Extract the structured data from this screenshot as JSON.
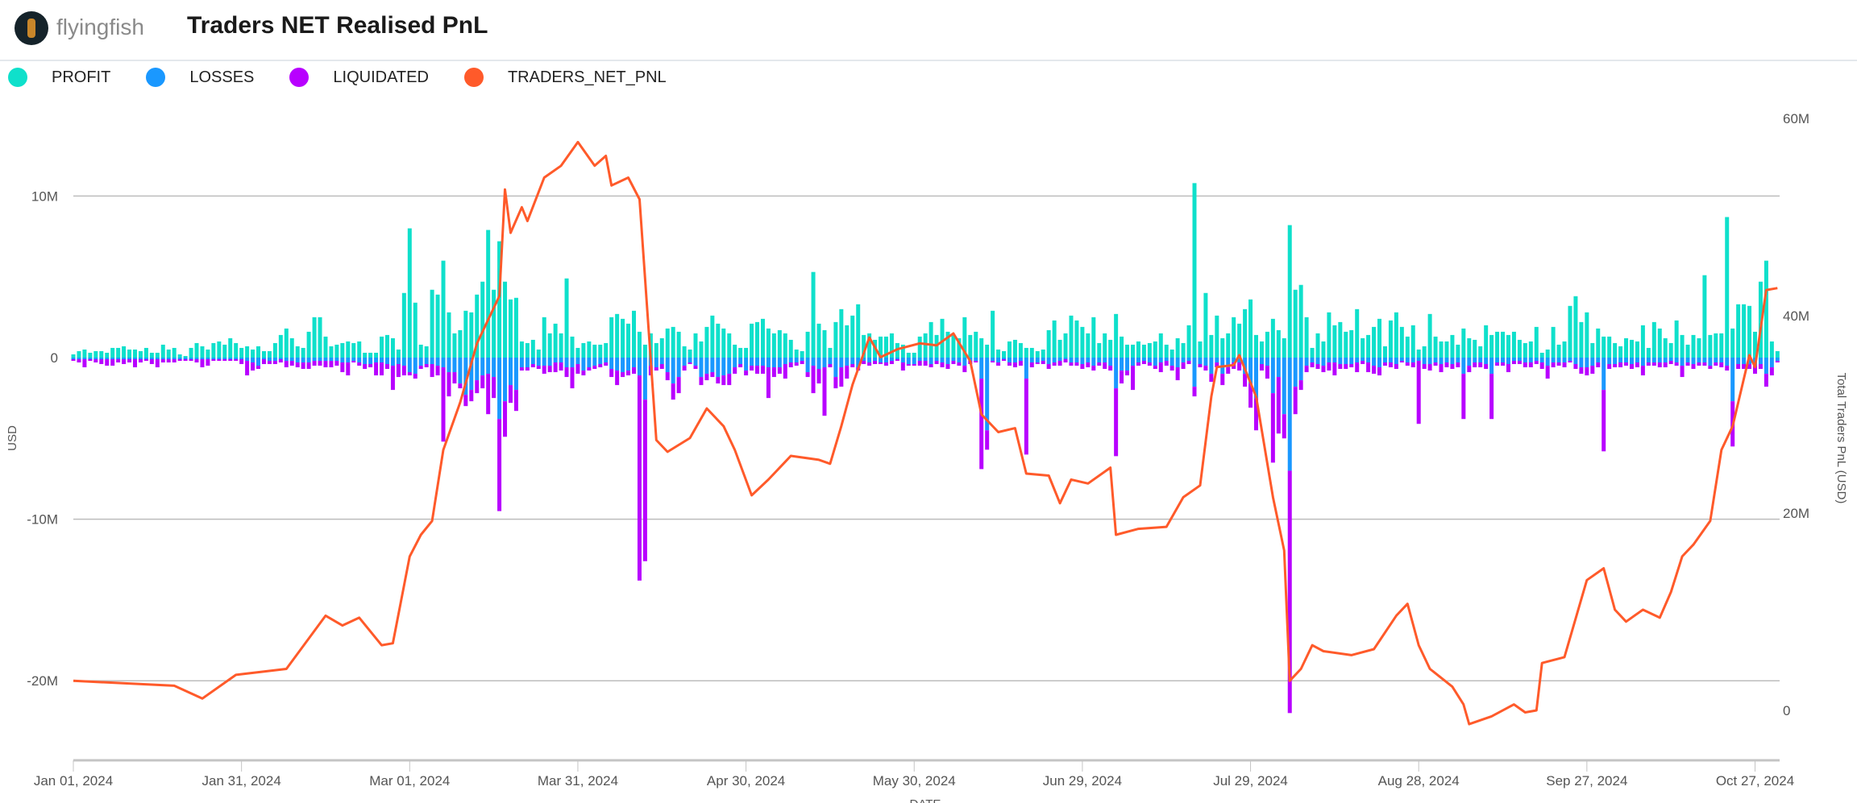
{
  "header": {
    "brand": "flyingfish",
    "title": "Traders NET Realised PnL"
  },
  "legend": [
    {
      "label": "PROFIT",
      "color": "#0fe0cb"
    },
    {
      "label": "LOSSES",
      "color": "#1a98ff"
    },
    {
      "label": "LIQUIDATED",
      "color": "#b800ff"
    },
    {
      "label": "TRADERS_NET_PNL",
      "color": "#ff5a2a"
    }
  ],
  "chart_data": {
    "type": "bar+line",
    "start_date": "2024-01-01",
    "xlabel": "DATE",
    "ylabel": "USD",
    "y2label": "Total Traders PnL (USD)",
    "x_ticks": [
      "Jan 01, 2024",
      "Jan 31, 2024",
      "Mar 01, 2024",
      "Mar 31, 2024",
      "Apr 30, 2024",
      "May 30, 2024",
      "Jun 29, 2024",
      "Jul 29, 2024",
      "Aug 28, 2024",
      "Sep 27, 2024",
      "Oct 27, 2024"
    ],
    "y_ticks": [
      {
        "v": 10,
        "label": "10M"
      },
      {
        "v": 0,
        "label": "0"
      },
      {
        "v": -10,
        "label": "-10M"
      },
      {
        "v": -20,
        "label": "-20M"
      }
    ],
    "y2_ticks": [
      {
        "v": 60,
        "label": "60M"
      },
      {
        "v": 40,
        "label": "40M"
      },
      {
        "v": 20,
        "label": "20M"
      },
      {
        "v": 0,
        "label": "0"
      }
    ],
    "units": "millions USD",
    "grid": true,
    "legend_position": "top-left",
    "profit": [
      0.2,
      0.4,
      0.5,
      0.3,
      0.4,
      0.4,
      0.3,
      0.6,
      0.6,
      0.7,
      0.5,
      0.5,
      0.4,
      0.6,
      0.3,
      0.3,
      0.8,
      0.5,
      0.6,
      0.2,
      0.1,
      0.6,
      0.9,
      0.7,
      0.5,
      0.9,
      1.0,
      0.8,
      1.2,
      0.9,
      0.6,
      0.7,
      0.5,
      0.7,
      0.4,
      0.4,
      0.9,
      1.4,
      1.8,
      1.2,
      0.7,
      0.6,
      1.6,
      2.5,
      2.5,
      1.3,
      0.7,
      0.8,
      0.9,
      1.0,
      0.9,
      1.0,
      0.3,
      0.3,
      0.3,
      1.3,
      1.4,
      1.2,
      0.5,
      4.0,
      8.0,
      3.4,
      0.8,
      0.7,
      4.2,
      3.9,
      6.0,
      2.8,
      1.5,
      1.7,
      2.9,
      2.8,
      3.9,
      4.7,
      7.9,
      4.2,
      7.2,
      4.7,
      3.6,
      3.7,
      1.0,
      0.9,
      1.1,
      0.5,
      2.5,
      1.5,
      2.1,
      1.5,
      4.9,
      1.3,
      0.6,
      0.9,
      1.0,
      0.8,
      0.8,
      0.9,
      2.5,
      2.7,
      2.4,
      2.1,
      2.9,
      1.6,
      0.8,
      1.5,
      0.9,
      1.2,
      1.8,
      1.9,
      1.6,
      0.7,
      0.5,
      1.5,
      1.0,
      1.9,
      2.6,
      2.1,
      1.8,
      1.5,
      0.8,
      0.6,
      0.6,
      2.1,
      2.2,
      2.4,
      1.8,
      1.5,
      1.7,
      1.5,
      1.1,
      0.5,
      0.4,
      1.6,
      5.3,
      2.1,
      1.7,
      0.6,
      2.2,
      3.0,
      2.0,
      2.6,
      3.3,
      1.4,
      1.5,
      1.1,
      1.3,
      1.3,
      1.5,
      0.9,
      0.8,
      0.3,
      0.3,
      1.3,
      1.5,
      2.2,
      1.4,
      2.4,
      1.6,
      1.4,
      1.2,
      2.5,
      1.4,
      1.6,
      1.2,
      0.8,
      2.9,
      0.5,
      0.4,
      1.0,
      1.1,
      0.9,
      0.6,
      0.6,
      0.4,
      0.5,
      1.7,
      2.3,
      1.1,
      1.5,
      2.6,
      2.3,
      1.9,
      1.5,
      2.5,
      0.9,
      1.5,
      1.1,
      2.7,
      1.3,
      0.8,
      0.8,
      1.0,
      0.8,
      0.9,
      1.0,
      1.5,
      0.8,
      0.5,
      1.2,
      0.9,
      2.0,
      10.8,
      1.0,
      4.0,
      1.4,
      2.6,
      1.2,
      1.5,
      2.5,
      2.1,
      3.0,
      3.6,
      1.4,
      1.0,
      1.6,
      2.4,
      1.7,
      1.2,
      8.2,
      4.2,
      4.5,
      2.5,
      0.6,
      1.5,
      1.0,
      2.8,
      2.0,
      2.2,
      1.6,
      1.7,
      3.0,
      1.2,
      1.4,
      1.9,
      2.4,
      0.7,
      2.3,
      2.8,
      1.9,
      1.3,
      2.0,
      0.5,
      0.7,
      2.7,
      1.3,
      1.0,
      1.0,
      1.4,
      0.8,
      1.8,
      1.2,
      1.1,
      0.7,
      2.0,
      1.4,
      1.6,
      1.6,
      1.4,
      1.6,
      1.1,
      0.9,
      1.0,
      1.9,
      0.3,
      0.5,
      1.9,
      0.8,
      1.0,
      3.2,
      3.8,
      2.2,
      2.8,
      0.9,
      1.8,
      1.3,
      1.3,
      0.9,
      0.7,
      1.2,
      1.1,
      1.0,
      2.0,
      0.6,
      2.2,
      1.8,
      1.2,
      0.9,
      2.3,
      1.4,
      0.8,
      1.4,
      1.2,
      5.1,
      1.4,
      1.5,
      1.5,
      8.7,
      1.8,
      3.3,
      3.3,
      3.2,
      1.6,
      4.7,
      6.0,
      1.0,
      0.4
    ],
    "losses": [
      -0.1,
      -0.1,
      -0.1,
      -0.1,
      -0.1,
      -0.1,
      -0.1,
      -0.1,
      -0.1,
      -0.1,
      -0.1,
      -0.1,
      -0.1,
      -0.1,
      -0.1,
      -0.1,
      -0.1,
      -0.1,
      -0.1,
      -0.1,
      -0.1,
      -0.1,
      -0.1,
      -0.1,
      -0.1,
      -0.1,
      -0.1,
      -0.1,
      -0.1,
      -0.1,
      -0.1,
      -0.2,
      -0.3,
      -0.5,
      -0.1,
      -0.2,
      -0.2,
      -0.1,
      -0.2,
      -0.2,
      -0.3,
      -0.3,
      -0.3,
      -0.2,
      -0.2,
      -0.2,
      -0.2,
      -0.2,
      -0.3,
      -0.3,
      -0.2,
      -0.3,
      -0.4,
      -0.4,
      -0.3,
      -0.3,
      -0.4,
      -0.5,
      -0.4,
      -0.5,
      -0.9,
      -1.0,
      -0.5,
      -0.4,
      -0.4,
      -0.5,
      -0.6,
      -0.9,
      -0.9,
      -1.6,
      -2.3,
      -2.0,
      -1.4,
      -1.1,
      -1.0,
      -1.2,
      -3.8,
      -2.7,
      -1.7,
      -2.0,
      -0.6,
      -0.6,
      -0.4,
      -0.5,
      -0.5,
      -0.5,
      -0.3,
      -0.3,
      -0.6,
      -0.6,
      -0.4,
      -0.8,
      -0.6,
      -0.5,
      -0.4,
      -0.3,
      -0.7,
      -0.8,
      -0.9,
      -0.8,
      -0.6,
      -1.1,
      -2.6,
      -0.5,
      -0.6,
      -0.4,
      -0.9,
      -1.6,
      -1.2,
      -0.5,
      -0.3,
      -0.5,
      -1.2,
      -1.0,
      -0.9,
      -1.2,
      -1.1,
      -1.0,
      -0.6,
      -0.4,
      -0.8,
      -0.5,
      -0.5,
      -0.5,
      -0.6,
      -0.6,
      -0.6,
      -0.4,
      -0.3,
      -0.3,
      -0.2,
      -0.9,
      -0.5,
      -0.7,
      -0.6,
      -0.4,
      -1.2,
      -0.6,
      -0.5,
      -0.4,
      -0.6,
      -0.2,
      -0.3,
      -0.2,
      -0.3,
      -0.3,
      -0.2,
      -0.1,
      -0.3,
      -0.4,
      -0.4,
      -0.2,
      -0.2,
      -0.4,
      -0.2,
      -0.3,
      -0.4,
      -0.2,
      -0.3,
      -0.5,
      -0.2,
      -0.2,
      -1.3,
      -4.5,
      -0.2,
      -0.3,
      -0.1,
      -0.3,
      -0.3,
      -0.2,
      -1.3,
      -0.3,
      -0.3,
      -0.2,
      -0.4,
      -0.3,
      -0.2,
      -0.1,
      -0.3,
      -0.3,
      -0.4,
      -0.3,
      -0.5,
      -0.3,
      -0.3,
      -0.5,
      -1.9,
      -0.8,
      -0.8,
      -0.5,
      -0.3,
      -0.2,
      -0.3,
      -0.5,
      -0.3,
      -0.2,
      -0.5,
      -0.6,
      -0.3,
      -0.2,
      -1.8,
      -0.4,
      -0.5,
      -1.0,
      -0.3,
      -1.0,
      -0.6,
      -0.3,
      -0.3,
      -1.0,
      -1.6,
      -2.5,
      -0.4,
      -0.5,
      -2.2,
      -1.2,
      -3.5,
      -7.0,
      -1.8,
      -1.4,
      -0.5,
      -0.3,
      -0.4,
      -0.5,
      -0.3,
      -0.3,
      -0.4,
      -0.4,
      -0.4,
      -0.3,
      -0.2,
      -0.3,
      -0.5,
      -0.6,
      -0.3,
      -0.3,
      -0.4,
      -0.2,
      -0.3,
      -0.3,
      -0.2,
      -0.4,
      -0.4,
      -0.3,
      -0.4,
      -0.3,
      -0.4,
      -0.3,
      -1.0,
      -0.5,
      -0.3,
      -0.3,
      -0.4,
      -1.0,
      -0.3,
      -0.3,
      -0.4,
      -0.2,
      -0.2,
      -0.3,
      -0.3,
      -0.2,
      -0.3,
      -0.5,
      -0.3,
      -0.3,
      -0.3,
      -0.2,
      -0.4,
      -0.6,
      -0.6,
      -0.5,
      -0.3,
      -2.0,
      -0.4,
      -0.4,
      -0.3,
      -0.3,
      -0.4,
      -0.3,
      -0.5,
      -0.3,
      -0.3,
      -0.3,
      -0.3,
      -0.2,
      -0.3,
      -0.5,
      -0.3,
      -0.4,
      -0.3,
      -0.3,
      -0.5,
      -0.3,
      -0.3,
      -0.5,
      -2.7,
      -0.4,
      -0.4,
      -0.4,
      -0.5,
      -0.4,
      -1.0,
      -0.6,
      -0.2
    ],
    "liquidated": [
      -0.1,
      -0.2,
      -0.5,
      -0.1,
      -0.2,
      -0.3,
      -0.4,
      -0.4,
      -0.2,
      -0.3,
      -0.2,
      -0.5,
      -0.2,
      -0.1,
      -0.3,
      -0.5,
      -0.2,
      -0.2,
      -0.2,
      -0.1,
      -0.1,
      -0.1,
      -0.2,
      -0.5,
      -0.4,
      -0.1,
      -0.1,
      -0.1,
      -0.1,
      -0.1,
      -0.3,
      -0.9,
      -0.5,
      -0.2,
      -0.3,
      -0.2,
      -0.2,
      -0.2,
      -0.4,
      -0.3,
      -0.3,
      -0.4,
      -0.4,
      -0.3,
      -0.3,
      -0.4,
      -0.4,
      -0.3,
      -0.6,
      -0.8,
      -0.1,
      -0.2,
      -0.3,
      -0.2,
      -0.8,
      -0.8,
      -0.3,
      -1.5,
      -0.8,
      -0.6,
      -0.2,
      -0.3,
      -0.2,
      -0.2,
      -0.8,
      -0.6,
      -4.6,
      -1.5,
      -0.7,
      -0.3,
      -0.7,
      -0.7,
      -0.8,
      -0.8,
      -2.5,
      -1.3,
      -5.7,
      -2.2,
      -1.1,
      -1.3,
      -0.2,
      -0.2,
      -0.2,
      -0.2,
      -0.5,
      -0.4,
      -0.6,
      -0.5,
      -0.6,
      -1.3,
      -0.6,
      -0.3,
      -0.2,
      -0.2,
      -0.2,
      -0.2,
      -0.5,
      -0.9,
      -0.3,
      -0.3,
      -0.4,
      -12.7,
      -10.0,
      -0.6,
      -0.2,
      -0.3,
      -0.5,
      -1.0,
      -1.0,
      -0.3,
      -0.1,
      -0.2,
      -0.5,
      -0.4,
      -0.3,
      -0.4,
      -0.6,
      -0.7,
      -0.4,
      -0.2,
      -0.3,
      -0.3,
      -0.5,
      -0.5,
      -1.9,
      -0.6,
      -0.4,
      -0.9,
      -0.3,
      -0.2,
      -0.2,
      -0.3,
      -1.7,
      -0.9,
      -3.0,
      -0.2,
      -0.7,
      -1.2,
      -0.8,
      -0.2,
      -0.2,
      -0.2,
      -0.2,
      -0.2,
      -0.1,
      -0.2,
      -0.2,
      -0.1,
      -0.5,
      -0.1,
      -0.1,
      -0.3,
      -0.3,
      -0.2,
      -0.2,
      -0.3,
      -0.3,
      -0.2,
      -0.2,
      -0.4,
      -0.2,
      -0.1,
      -5.6,
      -1.2,
      -0.1,
      -0.2,
      -0.1,
      -0.2,
      -0.3,
      -0.3,
      -4.7,
      -0.3,
      -0.1,
      -0.2,
      -0.3,
      -0.2,
      -0.3,
      -0.2,
      -0.2,
      -0.2,
      -0.3,
      -0.3,
      -0.3,
      -0.2,
      -0.4,
      -0.3,
      -4.2,
      -0.8,
      -0.3,
      -1.5,
      -0.2,
      -0.2,
      -0.2,
      -0.2,
      -0.6,
      -0.3,
      -0.3,
      -0.8,
      -0.4,
      -0.2,
      -0.6,
      -0.2,
      -0.3,
      -0.5,
      -0.3,
      -0.7,
      -0.4,
      -0.4,
      -0.5,
      -0.8,
      -1.5,
      -2.0,
      -0.4,
      -0.8,
      -4.3,
      -3.5,
      -1.5,
      -15.0,
      -1.7,
      -0.6,
      -0.4,
      -0.3,
      -0.3,
      -0.4,
      -0.5,
      -0.8,
      -0.3,
      -0.3,
      -0.2,
      -0.6,
      -0.2,
      -0.6,
      -0.5,
      -0.5,
      -0.2,
      -0.3,
      -0.3,
      -0.1,
      -0.2,
      -0.3,
      -3.9,
      -0.3,
      -0.4,
      -0.2,
      -0.5,
      -0.3,
      -0.3,
      -0.3,
      -2.8,
      -0.4,
      -0.3,
      -0.3,
      -0.3,
      -2.8,
      -0.2,
      -0.2,
      -0.5,
      -0.2,
      -0.2,
      -0.3,
      -0.3,
      -0.2,
      -0.4,
      -0.8,
      -0.3,
      -0.2,
      -0.3,
      -0.1,
      -0.3,
      -0.4,
      -0.5,
      -0.5,
      -0.3,
      -3.8,
      -0.3,
      -0.2,
      -0.3,
      -0.2,
      -0.3,
      -0.3,
      -0.6,
      -0.2,
      -0.2,
      -0.3,
      -0.3,
      -0.2,
      -0.2,
      -0.7,
      -0.2,
      -0.3,
      -0.2,
      -0.2,
      -0.2,
      -0.2,
      -0.3,
      -0.3,
      -2.8,
      -0.3,
      -0.3,
      -0.3,
      -0.5,
      -0.3,
      -0.8,
      -0.5,
      -0.1
    ],
    "traders_net_pnl": [
      [
        "2024-01-01",
        3.0
      ],
      [
        "2024-01-19",
        2.5
      ],
      [
        "2024-01-24",
        1.2
      ],
      [
        "2024-01-30",
        3.6
      ],
      [
        "2024-02-08",
        4.2
      ],
      [
        "2024-02-15",
        9.6
      ],
      [
        "2024-02-18",
        8.6
      ],
      [
        "2024-02-21",
        9.4
      ],
      [
        "2024-02-25",
        6.6
      ],
      [
        "2024-02-27",
        6.8
      ],
      [
        "2024-03-01",
        15.6
      ],
      [
        "2024-03-03",
        17.8
      ],
      [
        "2024-03-05",
        19.2
      ],
      [
        "2024-03-07",
        26.4
      ],
      [
        "2024-03-10",
        31.2
      ],
      [
        "2024-03-13",
        37.2
      ],
      [
        "2024-03-17",
        42.0
      ],
      [
        "2024-03-18",
        52.8
      ],
      [
        "2024-03-19",
        48.4
      ],
      [
        "2024-03-21",
        51.0
      ],
      [
        "2024-03-22",
        49.6
      ],
      [
        "2024-03-25",
        54.0
      ],
      [
        "2024-03-28",
        55.2
      ],
      [
        "2024-03-31",
        57.6
      ],
      [
        "2024-04-03",
        55.2
      ],
      [
        "2024-04-05",
        56.2
      ],
      [
        "2024-04-06",
        53.2
      ],
      [
        "2024-04-09",
        54.0
      ],
      [
        "2024-04-11",
        51.8
      ],
      [
        "2024-04-14",
        27.4
      ],
      [
        "2024-04-16",
        26.2
      ],
      [
        "2024-04-20",
        27.6
      ],
      [
        "2024-04-23",
        30.6
      ],
      [
        "2024-04-26",
        28.8
      ],
      [
        "2024-04-28",
        26.4
      ],
      [
        "2024-05-01",
        21.8
      ],
      [
        "2024-05-04",
        23.4
      ],
      [
        "2024-05-07",
        25.2
      ],
      [
        "2024-05-08",
        25.8
      ],
      [
        "2024-05-13",
        25.4
      ],
      [
        "2024-05-15",
        25.0
      ],
      [
        "2024-05-17",
        28.8
      ],
      [
        "2024-05-19",
        33.0
      ],
      [
        "2024-05-22",
        37.8
      ],
      [
        "2024-05-24",
        35.8
      ],
      [
        "2024-05-27",
        36.6
      ],
      [
        "2024-05-31",
        37.2
      ],
      [
        "2024-06-03",
        37.0
      ],
      [
        "2024-06-06",
        38.2
      ],
      [
        "2024-06-09",
        35.4
      ],
      [
        "2024-06-11",
        30.0
      ],
      [
        "2024-06-14",
        28.2
      ],
      [
        "2024-06-17",
        28.6
      ],
      [
        "2024-06-19",
        24.0
      ],
      [
        "2024-06-23",
        23.8
      ],
      [
        "2024-06-25",
        21.0
      ],
      [
        "2024-06-27",
        23.4
      ],
      [
        "2024-06-30",
        23.0
      ],
      [
        "2024-07-04",
        24.6
      ],
      [
        "2024-07-05",
        17.8
      ],
      [
        "2024-07-09",
        18.4
      ],
      [
        "2024-07-14",
        18.6
      ],
      [
        "2024-07-17",
        21.6
      ],
      [
        "2024-07-20",
        22.8
      ],
      [
        "2024-07-22",
        31.8
      ],
      [
        "2024-07-23",
        34.8
      ],
      [
        "2024-07-26",
        35.0
      ],
      [
        "2024-07-27",
        36.0
      ],
      [
        "2024-07-30",
        31.8
      ],
      [
        "2024-08-02",
        21.6
      ],
      [
        "2024-08-04",
        16.2
      ],
      [
        "2024-08-05",
        3.0
      ],
      [
        "2024-08-07",
        4.2
      ],
      [
        "2024-08-09",
        6.6
      ],
      [
        "2024-08-11",
        6.0
      ],
      [
        "2024-08-16",
        5.6
      ],
      [
        "2024-08-20",
        6.2
      ],
      [
        "2024-08-24",
        9.6
      ],
      [
        "2024-08-26",
        10.8
      ],
      [
        "2024-08-28",
        6.6
      ],
      [
        "2024-08-30",
        4.2
      ],
      [
        "2024-09-03",
        2.4
      ],
      [
        "2024-09-05",
        0.6
      ],
      [
        "2024-09-06",
        -1.4
      ],
      [
        "2024-09-10",
        -0.6
      ],
      [
        "2024-09-14",
        0.6
      ],
      [
        "2024-09-16",
        -0.2
      ],
      [
        "2024-09-18",
        0.0
      ],
      [
        "2024-09-19",
        4.8
      ],
      [
        "2024-09-23",
        5.4
      ],
      [
        "2024-09-27",
        13.2
      ],
      [
        "2024-09-30",
        14.4
      ],
      [
        "2024-10-02",
        10.2
      ],
      [
        "2024-10-04",
        9.0
      ],
      [
        "2024-10-07",
        10.2
      ],
      [
        "2024-10-10",
        9.4
      ],
      [
        "2024-10-12",
        12.0
      ],
      [
        "2024-10-14",
        15.6
      ],
      [
        "2024-10-16",
        16.8
      ],
      [
        "2024-10-19",
        19.2
      ],
      [
        "2024-10-21",
        26.4
      ],
      [
        "2024-10-23",
        28.8
      ],
      [
        "2024-10-26",
        36.0
      ],
      [
        "2024-10-27",
        34.8
      ],
      [
        "2024-10-29",
        42.6
      ],
      [
        "2024-10-31",
        42.8
      ]
    ]
  }
}
